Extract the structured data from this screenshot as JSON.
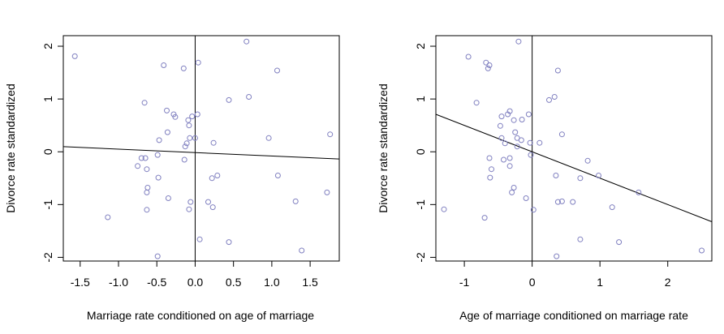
{
  "chart_data": [
    {
      "type": "scatter",
      "xlabel": "Marriage rate conditioned on age of marriage",
      "ylabel": "Divorce rate standardized",
      "xlim": [
        -1.72,
        1.88
      ],
      "ylim": [
        -2.07,
        2.2
      ],
      "xticks": [
        -1.5,
        -1.0,
        -0.5,
        0.0,
        0.5,
        1.0,
        1.5
      ],
      "xtick_labels": [
        "-1.5",
        "-1.0",
        "-0.5",
        "0.0",
        "0.5",
        "1.0",
        "1.5"
      ],
      "yticks": [
        -2,
        -1,
        0,
        1,
        2
      ],
      "ytick_labels": [
        "-2",
        "-1",
        "0",
        "1",
        "2"
      ],
      "vline_x": 0,
      "regression_line": {
        "intercept": -0.015,
        "slope": -0.065
      },
      "point_color": "#8080c0",
      "points": [
        {
          "x": -1.57,
          "y": 1.81
        },
        {
          "x": -1.14,
          "y": -1.24
        },
        {
          "x": -0.75,
          "y": -0.27
        },
        {
          "x": -0.7,
          "y": -0.12
        },
        {
          "x": -0.66,
          "y": 0.93
        },
        {
          "x": -0.65,
          "y": -0.12
        },
        {
          "x": -0.63,
          "y": -0.33
        },
        {
          "x": -0.62,
          "y": -0.68
        },
        {
          "x": -0.63,
          "y": -0.77
        },
        {
          "x": -0.63,
          "y": -1.1
        },
        {
          "x": -0.49,
          "y": -0.06
        },
        {
          "x": -0.48,
          "y": -0.49
        },
        {
          "x": -0.47,
          "y": 0.22
        },
        {
          "x": -0.49,
          "y": -1.98
        },
        {
          "x": -0.41,
          "y": 1.64
        },
        {
          "x": -0.37,
          "y": 0.78
        },
        {
          "x": -0.36,
          "y": 0.37
        },
        {
          "x": -0.35,
          "y": -0.88
        },
        {
          "x": -0.28,
          "y": 0.71
        },
        {
          "x": -0.26,
          "y": 0.66
        },
        {
          "x": -0.15,
          "y": 1.58
        },
        {
          "x": -0.14,
          "y": -0.15
        },
        {
          "x": -0.13,
          "y": 0.1
        },
        {
          "x": -0.11,
          "y": 0.16
        },
        {
          "x": -0.09,
          "y": 0.6
        },
        {
          "x": -0.08,
          "y": 0.5
        },
        {
          "x": -0.07,
          "y": 0.26
        },
        {
          "x": -0.08,
          "y": -1.09
        },
        {
          "x": -0.06,
          "y": -0.95
        },
        {
          "x": -0.04,
          "y": 0.67
        },
        {
          "x": 0.0,
          "y": 0.26
        },
        {
          "x": 0.03,
          "y": 0.71
        },
        {
          "x": 0.04,
          "y": 1.69
        },
        {
          "x": 0.06,
          "y": -1.66
        },
        {
          "x": 0.17,
          "y": -0.95
        },
        {
          "x": 0.22,
          "y": -0.5
        },
        {
          "x": 0.24,
          "y": 0.17
        },
        {
          "x": 0.23,
          "y": -1.05
        },
        {
          "x": 0.29,
          "y": -0.45
        },
        {
          "x": 0.44,
          "y": 0.98
        },
        {
          "x": 0.44,
          "y": -1.71
        },
        {
          "x": 0.67,
          "y": 2.09
        },
        {
          "x": 0.7,
          "y": 1.04
        },
        {
          "x": 0.96,
          "y": 0.26
        },
        {
          "x": 1.07,
          "y": 1.54
        },
        {
          "x": 1.08,
          "y": -0.45
        },
        {
          "x": 1.31,
          "y": -0.94
        },
        {
          "x": 1.39,
          "y": -1.87
        },
        {
          "x": 1.72,
          "y": -0.77
        },
        {
          "x": 1.76,
          "y": 0.33
        }
      ]
    },
    {
      "type": "scatter",
      "xlabel": "Age of marriage conditioned on marriage rate",
      "ylabel": "Divorce rate standardized",
      "xlim": [
        -1.42,
        2.65
      ],
      "ylim": [
        -2.07,
        2.2
      ],
      "xticks": [
        -1,
        0,
        1,
        2
      ],
      "xtick_labels": [
        "-1",
        "0",
        "1",
        "2"
      ],
      "yticks": [
        -2,
        -1,
        0,
        1,
        2
      ],
      "ytick_labels": [
        "-2",
        "-1",
        "0",
        "1",
        "2"
      ],
      "vline_x": 0,
      "regression_line": {
        "intercept": 0.0,
        "slope": -0.5
      },
      "point_color": "#8080c0",
      "points": [
        {
          "x": -1.3,
          "y": -1.09
        },
        {
          "x": -0.94,
          "y": 1.8
        },
        {
          "x": -0.82,
          "y": 0.93
        },
        {
          "x": -0.7,
          "y": -1.25
        },
        {
          "x": -0.68,
          "y": 1.69
        },
        {
          "x": -0.65,
          "y": 1.58
        },
        {
          "x": -0.63,
          "y": 1.64
        },
        {
          "x": -0.63,
          "y": -0.12
        },
        {
          "x": -0.6,
          "y": -0.33
        },
        {
          "x": -0.62,
          "y": -0.49
        },
        {
          "x": -0.47,
          "y": 0.49
        },
        {
          "x": -0.45,
          "y": 0.67
        },
        {
          "x": -0.45,
          "y": 0.26
        },
        {
          "x": -0.42,
          "y": -0.15
        },
        {
          "x": -0.4,
          "y": 0.16
        },
        {
          "x": -0.36,
          "y": 0.71
        },
        {
          "x": -0.33,
          "y": 0.77
        },
        {
          "x": -0.33,
          "y": -0.12
        },
        {
          "x": -0.33,
          "y": -0.27
        },
        {
          "x": -0.3,
          "y": -0.77
        },
        {
          "x": -0.27,
          "y": -0.68
        },
        {
          "x": -0.27,
          "y": 0.6
        },
        {
          "x": -0.25,
          "y": 0.37
        },
        {
          "x": -0.2,
          "y": 2.09
        },
        {
          "x": -0.22,
          "y": 0.1
        },
        {
          "x": -0.22,
          "y": 0.26
        },
        {
          "x": -0.16,
          "y": 0.22
        },
        {
          "x": -0.15,
          "y": 0.61
        },
        {
          "x": -0.09,
          "y": -0.88
        },
        {
          "x": -0.05,
          "y": 0.71
        },
        {
          "x": -0.03,
          "y": 0.17
        },
        {
          "x": -0.02,
          "y": -0.06
        },
        {
          "x": 0.02,
          "y": -1.1
        },
        {
          "x": 0.11,
          "y": 0.17
        },
        {
          "x": 0.25,
          "y": 0.98
        },
        {
          "x": 0.33,
          "y": 1.04
        },
        {
          "x": 0.35,
          "y": -0.45
        },
        {
          "x": 0.36,
          "y": -1.98
        },
        {
          "x": 0.38,
          "y": -0.95
        },
        {
          "x": 0.38,
          "y": 1.54
        },
        {
          "x": 0.44,
          "y": 0.33
        },
        {
          "x": 0.44,
          "y": -0.94
        },
        {
          "x": 0.6,
          "y": -0.95
        },
        {
          "x": 0.71,
          "y": -0.5
        },
        {
          "x": 0.71,
          "y": -1.66
        },
        {
          "x": 0.82,
          "y": -0.17
        },
        {
          "x": 0.98,
          "y": -0.45
        },
        {
          "x": 1.18,
          "y": -1.05
        },
        {
          "x": 1.28,
          "y": -1.71
        },
        {
          "x": 1.57,
          "y": -0.77
        },
        {
          "x": 2.5,
          "y": -1.87
        }
      ]
    }
  ]
}
